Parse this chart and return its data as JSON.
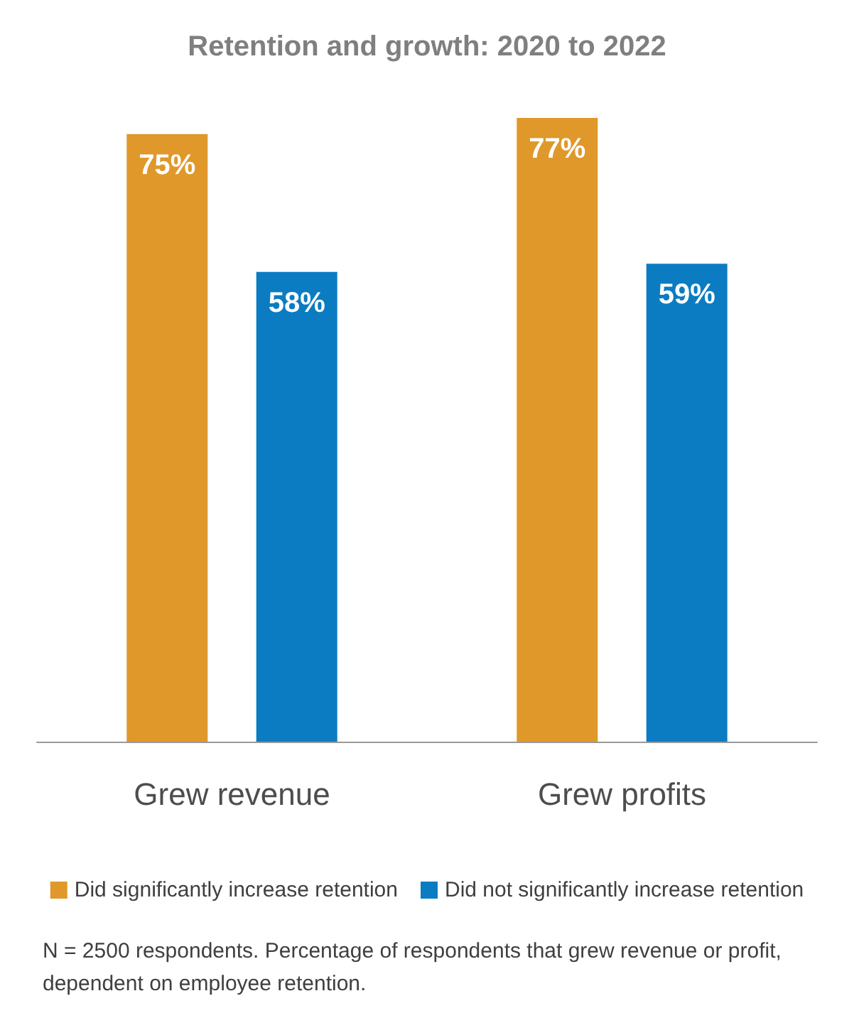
{
  "chart_data": {
    "type": "bar",
    "title": "Retention and growth: 2020 to 2022",
    "categories": [
      "Grew revenue",
      "Grew profits"
    ],
    "series": [
      {
        "name": "Did significantly increase retention",
        "color": "#e0982a",
        "values": [
          75,
          77
        ],
        "value_labels": [
          "75%",
          "77%"
        ]
      },
      {
        "name": "Did not significantly increase retention",
        "color": "#0b7cc1",
        "values": [
          58,
          59
        ],
        "value_labels": [
          "58%",
          "59%"
        ]
      }
    ],
    "legend": "bottom",
    "annotations": [
      "N = 2500 respondents. Percentage of respondents that grew revenue or profit, dependent on employee retention."
    ]
  }
}
